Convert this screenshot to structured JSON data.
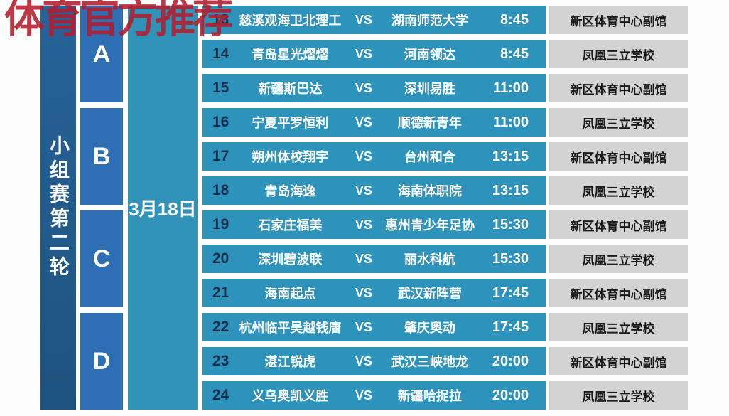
{
  "watermark": {
    "text": "体育官方推荐",
    "color": "#b21c2c"
  },
  "sidebar": {
    "round_title": "小组赛第二轮"
  },
  "date": {
    "label": "3月18日"
  },
  "groups": [
    {
      "label": "A"
    },
    {
      "label": "B"
    },
    {
      "label": "C"
    },
    {
      "label": "D"
    }
  ],
  "vs_label": "VS",
  "matches": [
    {
      "no": "13",
      "home": "慈溪观海卫北理工",
      "away": "湖南师范大学",
      "time": "8:45",
      "venue": "新区体育中心副馆"
    },
    {
      "no": "14",
      "home": "青岛星光熠熠",
      "away": "河南领达",
      "time": "8:45",
      "venue": "凤凰三立学校"
    },
    {
      "no": "15",
      "home": "新疆斯巴达",
      "away": "深圳易胜",
      "time": "11:00",
      "venue": "新区体育中心副馆"
    },
    {
      "no": "16",
      "home": "宁夏平罗恒利",
      "away": "顺德新青年",
      "time": "11:00",
      "venue": "凤凰三立学校"
    },
    {
      "no": "17",
      "home": "朔州体校翔宇",
      "away": "台州和合",
      "time": "13:15",
      "venue": "新区体育中心副馆"
    },
    {
      "no": "18",
      "home": "青岛海逸",
      "away": "海南体职院",
      "time": "13:15",
      "venue": "凤凰三立学校"
    },
    {
      "no": "19",
      "home": "石家庄福美",
      "away": "惠州青少年足协",
      "time": "15:30",
      "venue": "新区体育中心副馆"
    },
    {
      "no": "20",
      "home": "深圳碧波联",
      "away": "丽水科航",
      "time": "15:30",
      "venue": "凤凰三立学校"
    },
    {
      "no": "21",
      "home": "海南起点",
      "away": "武汉新阵营",
      "time": "17:45",
      "venue": "新区体育中心副馆"
    },
    {
      "no": "22",
      "home": "杭州临平吴越钱唐",
      "away": "肇庆奥动",
      "time": "17:45",
      "venue": "凤凰三立学校"
    },
    {
      "no": "23",
      "home": "湛江锐虎",
      "away": "武汉三峡地龙",
      "time": "20:00",
      "venue": "新区体育中心副馆"
    },
    {
      "no": "24",
      "home": "义乌奥凯义胜",
      "away": "新疆哈捉拉",
      "time": "20:00",
      "venue": "凤凰三立学校"
    }
  ],
  "colors": {
    "banner_blue": "#215b8c",
    "group_blue": "#2d6fb2",
    "row_teal": "#2e93ba",
    "date_teal": "#3293b8",
    "venue_gray": "#d3d3d3",
    "number_navy": "#14304d",
    "watermark_red": "#b21c2c"
  }
}
